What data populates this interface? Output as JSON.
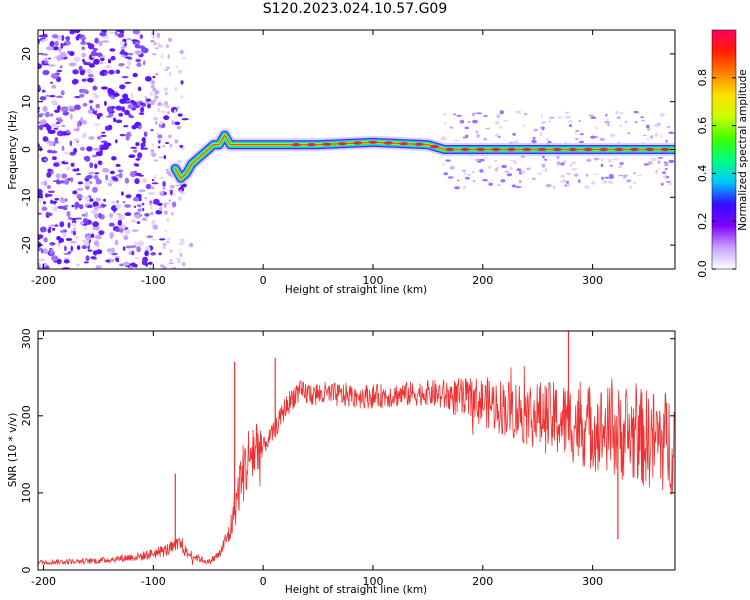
{
  "title": "S120.2023.024.10.57.G09",
  "chart_data": [
    {
      "type": "heatmap",
      "name": "spectrogram",
      "xlabel": "Height of straight line (km)",
      "ylabel": "Frequency (Hz)",
      "xlim": [
        -205,
        375
      ],
      "ylim": [
        -25,
        25
      ],
      "xticks": [
        -200,
        -100,
        0,
        100,
        200,
        300
      ],
      "yticks": [
        -20,
        -10,
        0,
        10,
        20
      ],
      "colorbar": {
        "label": "Normalized spectral amplitude",
        "range": [
          0.0,
          1.0
        ],
        "ticks": [
          0.0,
          0.2,
          0.4,
          0.6,
          0.8
        ],
        "tick_labels": [
          "0.0",
          "0.2",
          "0.4",
          "0.6",
          "0.8"
        ],
        "colormap": [
          "#ffffff",
          "#c8a0ff",
          "#8000ff",
          "#3010ff",
          "#00c8ff",
          "#00ff80",
          "#40ff00",
          "#c8ff00",
          "#ffe000",
          "#ff8000",
          "#ff2000",
          "#ff0060"
        ]
      },
      "ridge": {
        "x": [
          -80,
          -75,
          -70,
          -65,
          -60,
          -55,
          -50,
          -45,
          -40,
          -35,
          -30,
          -20,
          0,
          50,
          100,
          150,
          165,
          200,
          250,
          300,
          340,
          375
        ],
        "y": [
          -4,
          -6,
          -5,
          -3,
          -2,
          -1,
          0,
          1,
          1,
          3,
          1,
          1,
          1,
          1,
          1.5,
          1,
          0,
          0,
          0,
          0,
          0,
          0
        ]
      }
    },
    {
      "type": "line",
      "name": "snr",
      "xlabel": "Height of straight line (km)",
      "ylabel": "SNR (10 * v/v)",
      "xlim": [
        -205,
        375
      ],
      "ylim": [
        0,
        310
      ],
      "xticks": [
        -200,
        -100,
        0,
        100,
        200,
        300
      ],
      "yticks": [
        0,
        100,
        200,
        300
      ],
      "color": "#ee3030",
      "trend": {
        "x": [
          -205,
          -150,
          -110,
          -90,
          -80,
          -75,
          -70,
          -50,
          -40,
          -30,
          -20,
          -10,
          0,
          10,
          20,
          30,
          50,
          100,
          150,
          200,
          250,
          300,
          350,
          375
        ],
        "y": [
          10,
          12,
          18,
          25,
          30,
          35,
          22,
          10,
          20,
          50,
          120,
          155,
          160,
          180,
          210,
          230,
          228,
          225,
          230,
          218,
          200,
          185,
          170,
          165
        ]
      },
      "spikes": [
        {
          "x": -80,
          "y": 125
        },
        {
          "x": -26,
          "y": 270
        },
        {
          "x": 11,
          "y": 275
        },
        {
          "x": 278,
          "y": 310
        },
        {
          "x": 323,
          "y": 40
        }
      ]
    }
  ]
}
